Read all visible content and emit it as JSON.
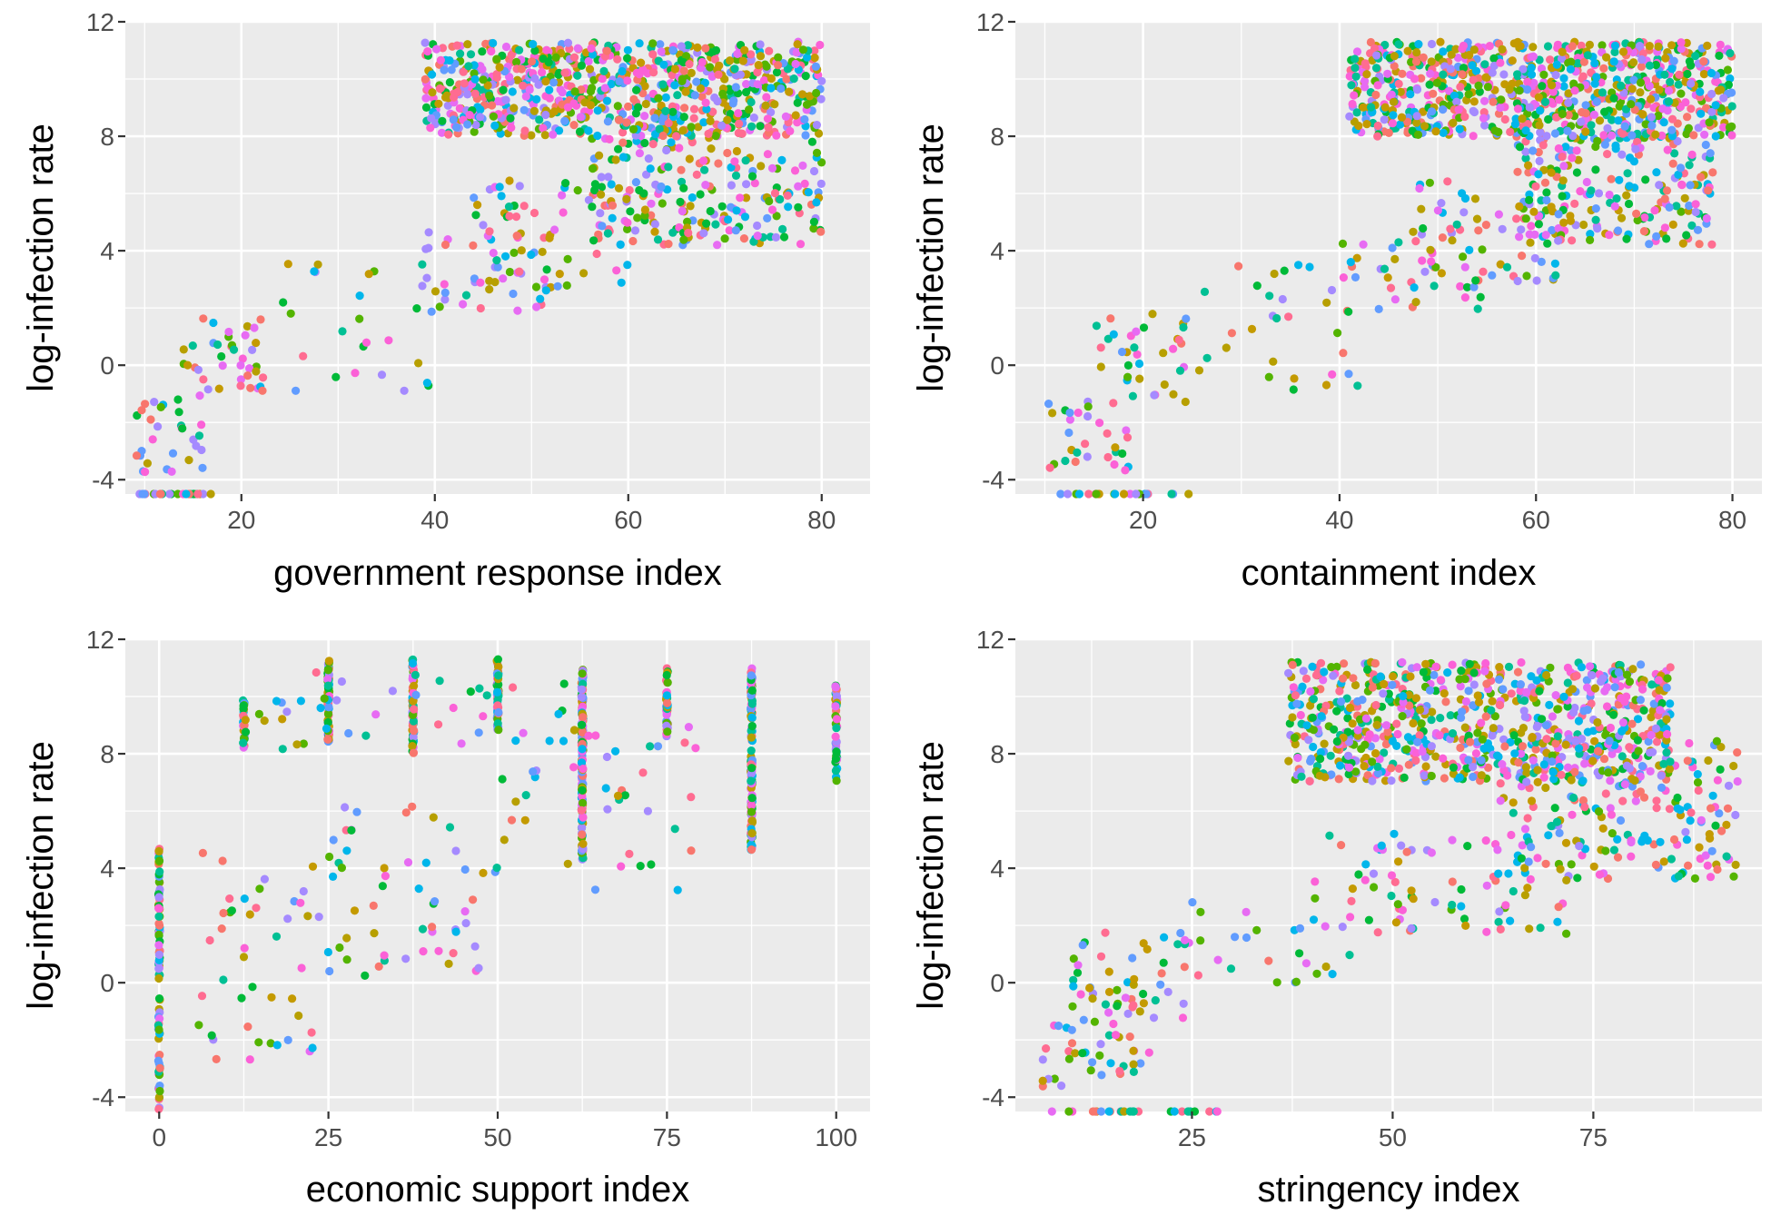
{
  "chart_data": [
    {
      "type": "scatter",
      "xlabel": "government response index",
      "ylabel": "log-infection rate",
      "xticks": [
        20,
        40,
        60,
        80
      ],
      "yticks": [
        -4,
        0,
        4,
        8,
        12
      ],
      "ytick_labels": [
        "-4",
        "0",
        "4",
        "8",
        "12"
      ],
      "xlim": [
        8,
        85
      ],
      "ylim": [
        -4.5,
        12
      ],
      "grid": true,
      "groups": [
        {
          "x": [
            9,
            17
          ],
          "y": [
            -4.5,
            -4.5
          ],
          "n": 24,
          "kind": "floor"
        },
        {
          "x": [
            9,
            16
          ],
          "y": [
            -3.8,
            -1.2
          ],
          "n": 30,
          "kind": "cloud"
        },
        {
          "x": [
            14,
            22
          ],
          "y": [
            -1.3,
            1.8
          ],
          "n": 35,
          "kind": "cloud"
        },
        {
          "x": [
            20,
            40
          ],
          "y": [
            -0.9,
            3.6
          ],
          "n": 30,
          "kind": "cloud"
        },
        {
          "x": [
            38,
            52
          ],
          "y": [
            1.8,
            4.8
          ],
          "n": 40,
          "kind": "cloud"
        },
        {
          "x": [
            44,
            60
          ],
          "y": [
            2.6,
            6.5
          ],
          "n": 60,
          "kind": "cloud"
        },
        {
          "x": [
            56,
            80
          ],
          "y": [
            4.2,
            8.2
          ],
          "n": 220,
          "kind": "cloud"
        },
        {
          "x": [
            39,
            80
          ],
          "y": [
            8,
            11.3
          ],
          "n": 800,
          "kind": "cloud"
        }
      ]
    },
    {
      "type": "scatter",
      "xlabel": "containment index",
      "ylabel": "log-infection rate",
      "xticks": [
        20,
        40,
        60,
        80
      ],
      "yticks": [
        -4,
        0,
        4,
        8,
        12
      ],
      "ytick_labels": [
        "-4",
        "0",
        "4",
        "8",
        "12"
      ],
      "xlim": [
        7,
        83
      ],
      "ylim": [
        -4.5,
        12
      ],
      "grid": true,
      "groups": [
        {
          "x": [
            10,
            25
          ],
          "y": [
            -4.5,
            -4.5
          ],
          "n": 24,
          "kind": "floor"
        },
        {
          "x": [
            10,
            19
          ],
          "y": [
            -3.8,
            -1.2
          ],
          "n": 30,
          "kind": "cloud"
        },
        {
          "x": [
            15,
            25
          ],
          "y": [
            -1.3,
            1.8
          ],
          "n": 35,
          "kind": "cloud"
        },
        {
          "x": [
            22,
            42
          ],
          "y": [
            -0.9,
            3.6
          ],
          "n": 30,
          "kind": "cloud"
        },
        {
          "x": [
            40,
            55
          ],
          "y": [
            1.8,
            4.8
          ],
          "n": 40,
          "kind": "cloud"
        },
        {
          "x": [
            48,
            62
          ],
          "y": [
            2.6,
            6.5
          ],
          "n": 60,
          "kind": "cloud"
        },
        {
          "x": [
            58,
            78
          ],
          "y": [
            4.2,
            8.2
          ],
          "n": 220,
          "kind": "cloud"
        },
        {
          "x": [
            41,
            80
          ],
          "y": [
            8,
            11.3
          ],
          "n": 800,
          "kind": "cloud"
        }
      ]
    },
    {
      "type": "scatter",
      "xlabel": "economic support index",
      "ylabel": "log-infection rate",
      "xticks": [
        0,
        25,
        50,
        75,
        100
      ],
      "yticks": [
        -4,
        0,
        4,
        8,
        12
      ],
      "ytick_labels": [
        "-4",
        "0",
        "4",
        "8",
        "12"
      ],
      "xlim": [
        -5,
        105
      ],
      "ylim": [
        -4.5,
        12
      ],
      "grid": true,
      "groups": [
        {
          "x": [
            0,
            0
          ],
          "y": [
            -4.5,
            4.8
          ],
          "n": 90,
          "kind": "column"
        },
        {
          "x": [
            12.5,
            12.5
          ],
          "y": [
            8.2,
            10
          ],
          "n": 25,
          "kind": "column"
        },
        {
          "x": [
            25,
            25
          ],
          "y": [
            8.4,
            11.3
          ],
          "n": 70,
          "kind": "column"
        },
        {
          "x": [
            37.5,
            37.5
          ],
          "y": [
            7.8,
            11.3
          ],
          "n": 70,
          "kind": "column"
        },
        {
          "x": [
            50,
            50
          ],
          "y": [
            8.6,
            11.3
          ],
          "n": 50,
          "kind": "column"
        },
        {
          "x": [
            62.5,
            62.5
          ],
          "y": [
            4.3,
            11
          ],
          "n": 140,
          "kind": "column"
        },
        {
          "x": [
            75,
            75
          ],
          "y": [
            8.6,
            11
          ],
          "n": 40,
          "kind": "column"
        },
        {
          "x": [
            87.5,
            87.5
          ],
          "y": [
            4.6,
            11
          ],
          "n": 140,
          "kind": "column"
        },
        {
          "x": [
            100,
            100
          ],
          "y": [
            7,
            10.5
          ],
          "n": 45,
          "kind": "column"
        },
        {
          "x": [
            5,
            25
          ],
          "y": [
            -3.2,
            4.6
          ],
          "n": 45,
          "kind": "cloud"
        },
        {
          "x": [
            25,
            50
          ],
          "y": [
            0.2,
            6.2
          ],
          "n": 55,
          "kind": "cloud"
        },
        {
          "x": [
            12,
            60
          ],
          "y": [
            8.1,
            10.9
          ],
          "n": 40,
          "kind": "cloud"
        },
        {
          "x": [
            50,
            80
          ],
          "y": [
            3.2,
            9
          ],
          "n": 40,
          "kind": "cloud"
        }
      ]
    },
    {
      "type": "scatter",
      "xlabel": "stringency index",
      "ylabel": "log-infection rate",
      "xticks": [
        25,
        50,
        75
      ],
      "yticks": [
        -4,
        0,
        4,
        8,
        12
      ],
      "ytick_labels": [
        "-4",
        "0",
        "4",
        "8",
        "12"
      ],
      "xlim": [
        3,
        96
      ],
      "ylim": [
        -4.5,
        12
      ],
      "grid": true,
      "groups": [
        {
          "x": [
            6,
            29
          ],
          "y": [
            -4.5,
            -4.5
          ],
          "n": 26,
          "kind": "floor"
        },
        {
          "x": [
            6,
            20
          ],
          "y": [
            -3.8,
            -1
          ],
          "n": 40,
          "kind": "cloud"
        },
        {
          "x": [
            10,
            25
          ],
          "y": [
            -1.5,
            1.8
          ],
          "n": 50,
          "kind": "cloud"
        },
        {
          "x": [
            25,
            45
          ],
          "y": [
            0,
            3
          ],
          "n": 25,
          "kind": "cloud"
        },
        {
          "x": [
            40,
            72
          ],
          "y": [
            1.6,
            5.2
          ],
          "n": 80,
          "kind": "cloud"
        },
        {
          "x": [
            63,
            93
          ],
          "y": [
            3.6,
            8.5
          ],
          "n": 200,
          "kind": "cloud"
        },
        {
          "x": [
            37,
            85
          ],
          "y": [
            7,
            11.2
          ],
          "n": 800,
          "kind": "cloud"
        }
      ]
    }
  ]
}
